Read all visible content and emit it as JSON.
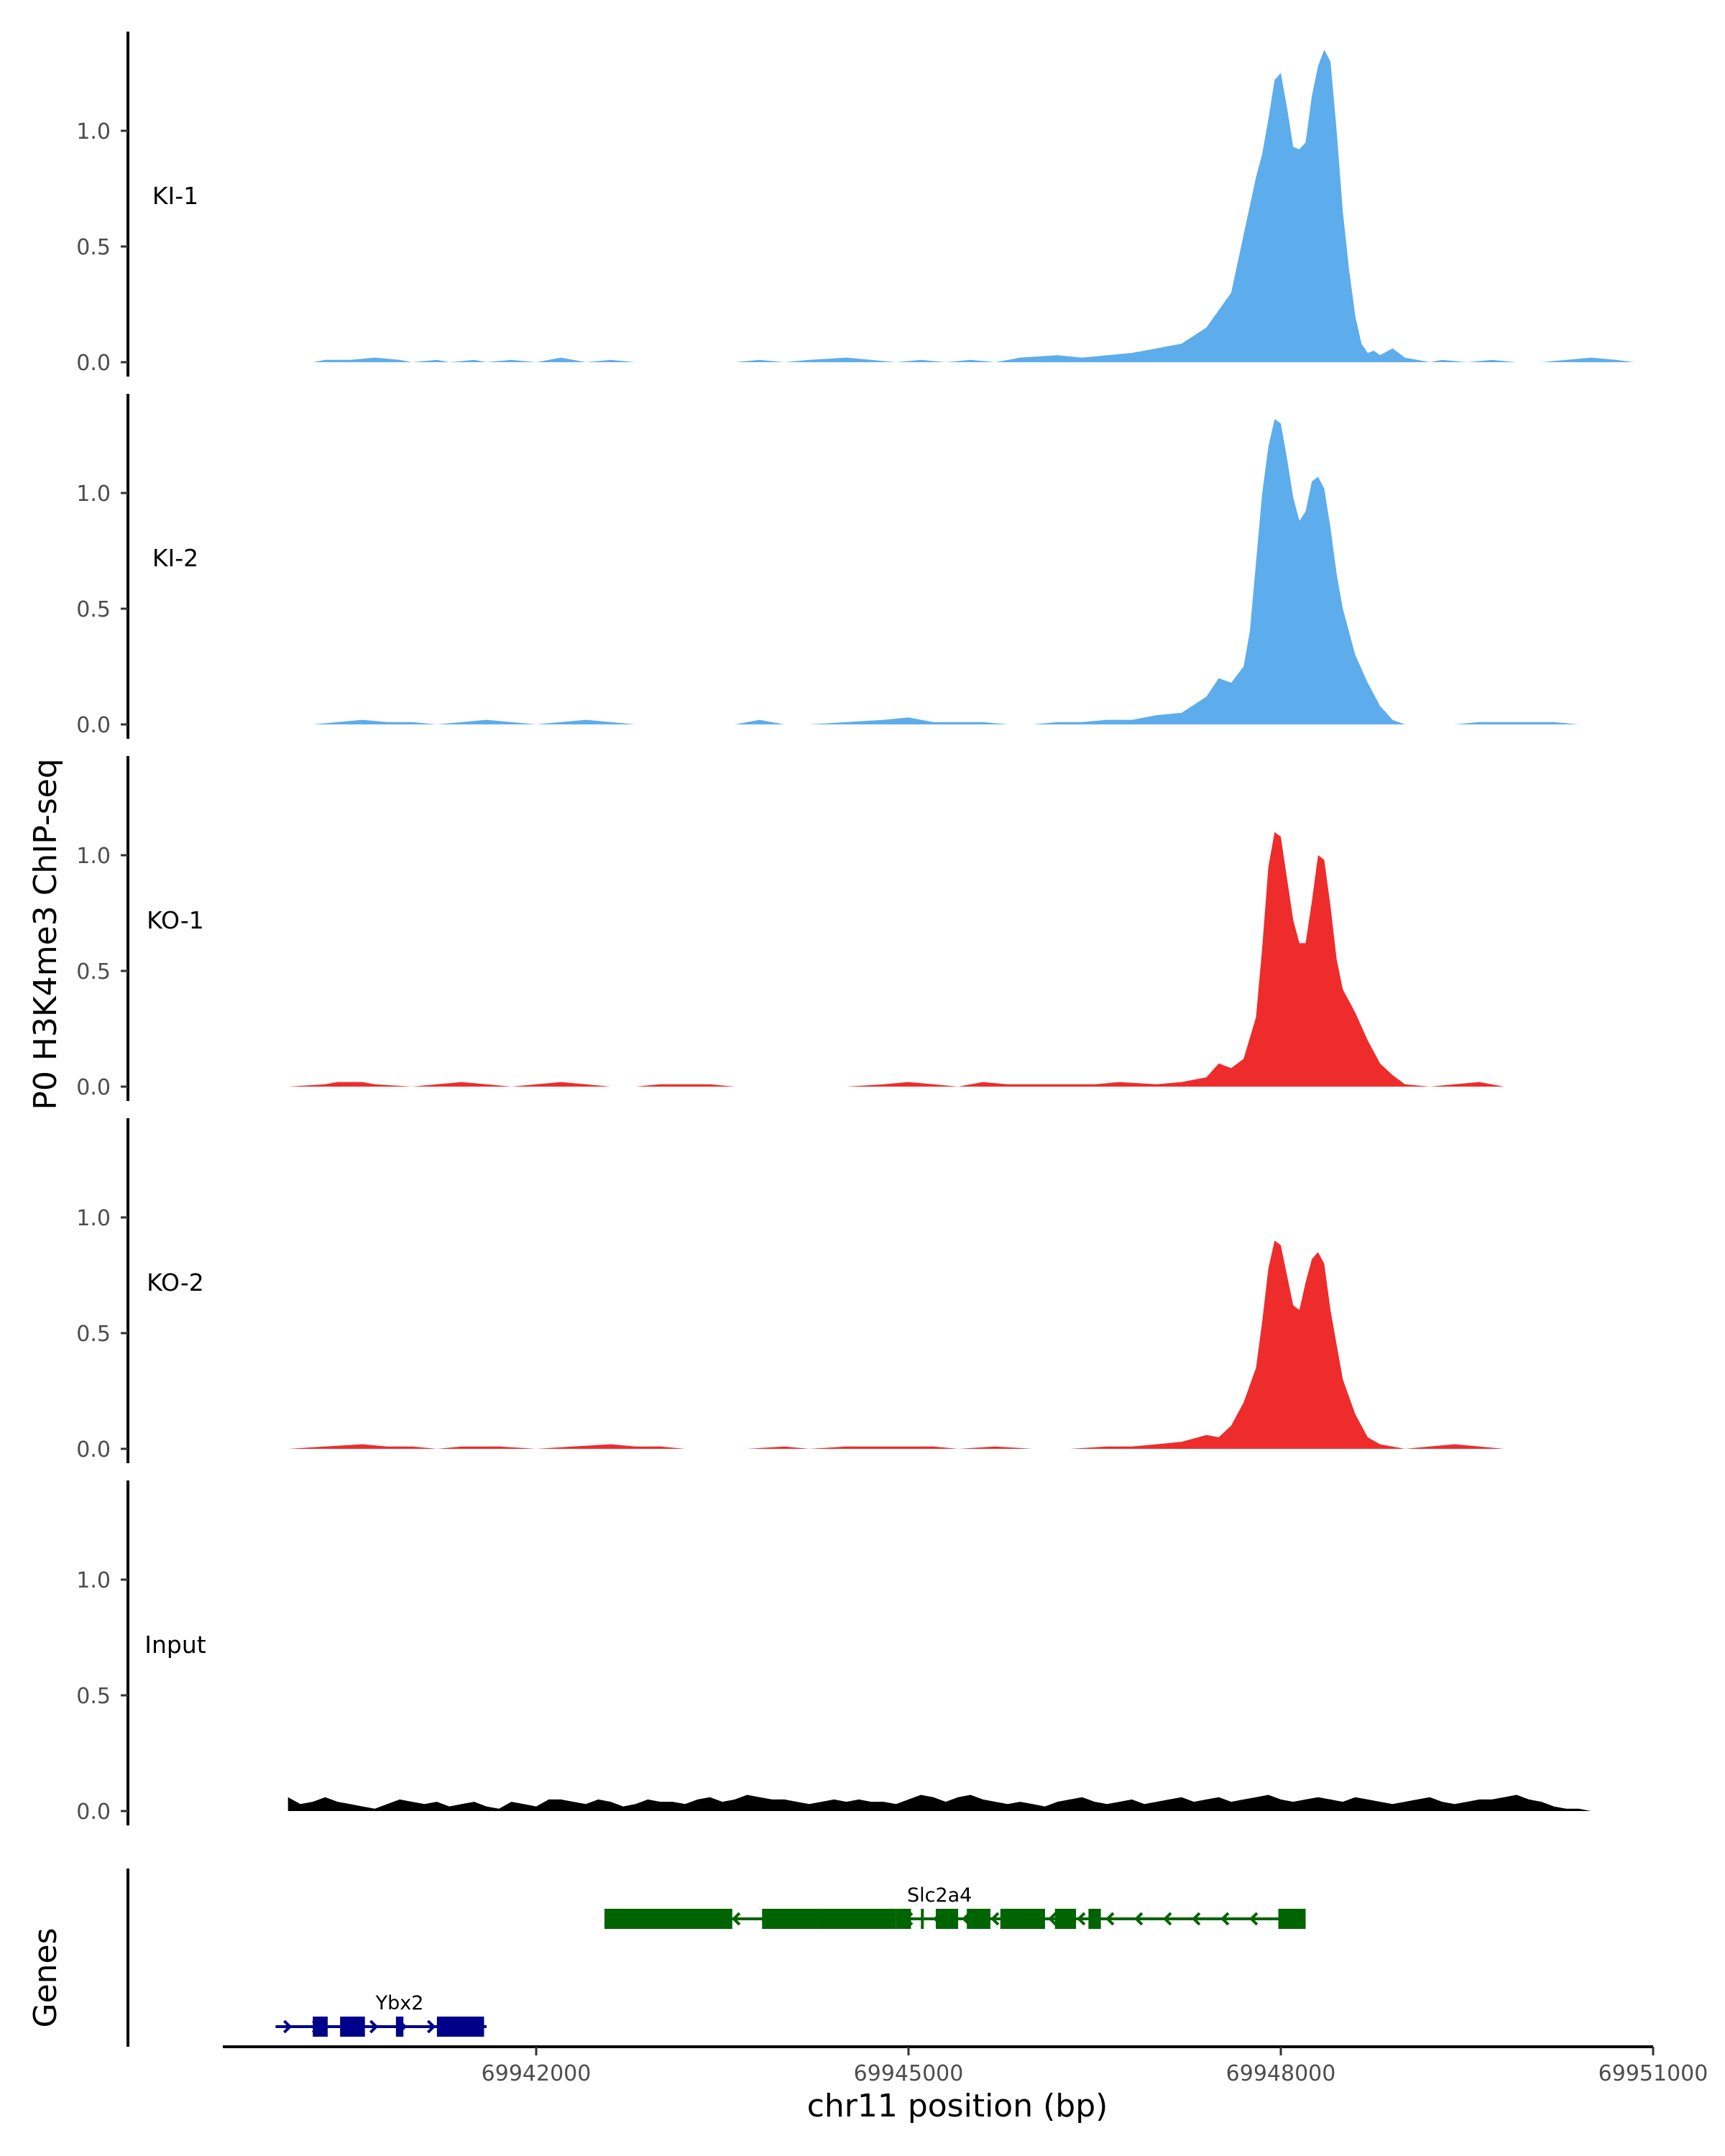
{
  "chart_data": {
    "type": "area",
    "ylabel": "P0 H3K4me3 ChIP-seq",
    "xlabel": "chr11 position (bp)",
    "xlim": [
      69939700,
      69951000
    ],
    "ylim": [
      0,
      1.4
    ],
    "y_ticks": [
      0.0,
      0.5,
      1.0
    ],
    "y_tick_labels": [
      "0.0",
      "0.5",
      "1.0"
    ],
    "x_ticks": [
      69942000,
      69945000,
      69948000,
      69951000
    ],
    "x_tick_labels": [
      "69942000",
      "69945000",
      "69948000",
      "69951000"
    ],
    "colors": {
      "KI": "#5DADEC",
      "KO": "#EE2C2C",
      "Input": "#000000",
      "gene_plus": "#00008B",
      "gene_minus": "#006400"
    },
    "tracks": [
      {
        "label": "KI-1",
        "color": "#5DADEC",
        "x": [
          69940200,
          69940300,
          69940500,
          69940700,
          69940900,
          69941000,
          69941200,
          69941300,
          69941500,
          69941600,
          69941800,
          69942000,
          69942200,
          69942300,
          69942400,
          69942600,
          69942800,
          69943000,
          69943200,
          69943400,
          69943600,
          69943800,
          69944000,
          69944200,
          69944500,
          69944700,
          69944900,
          69945100,
          69945300,
          69945500,
          69945700,
          69945900,
          69946200,
          69946400,
          69946600,
          69946800,
          69947000,
          69947200,
          69947400,
          69947600,
          69947700,
          69947800,
          69947850,
          69947900,
          69947950,
          69948000,
          69948050,
          69948100,
          69948150,
          69948200,
          69948250,
          69948300,
          69948350,
          69948400,
          69948450,
          69948500,
          69948550,
          69948600,
          69948650,
          69948700,
          69948750,
          69948800,
          69948900,
          69949000,
          69949100,
          69949200,
          69949300,
          69949500,
          69949700,
          69949900,
          69950100,
          69950300,
          69950500,
          69950700,
          69950850
        ],
        "values": [
          0,
          0.01,
          0.01,
          0.02,
          0.01,
          0,
          0.01,
          0,
          0.01,
          0,
          0.01,
          0,
          0.02,
          0.01,
          0,
          0.01,
          0,
          0,
          0,
          0,
          0,
          0.01,
          0,
          0.01,
          0.02,
          0.01,
          0,
          0.01,
          0,
          0.01,
          0,
          0.02,
          0.03,
          0.02,
          0.03,
          0.04,
          0.06,
          0.08,
          0.15,
          0.3,
          0.55,
          0.8,
          0.9,
          1.05,
          1.22,
          1.25,
          1.1,
          0.93,
          0.92,
          0.95,
          1.15,
          1.28,
          1.35,
          1.3,
          1.0,
          0.65,
          0.4,
          0.2,
          0.08,
          0.04,
          0.05,
          0.03,
          0.06,
          0.02,
          0.01,
          0,
          0.01,
          0,
          0.01,
          0,
          0,
          0.01,
          0.02,
          0.01,
          0
        ]
      },
      {
        "label": "KI-2",
        "color": "#5DADEC",
        "x": [
          69940000,
          69940200,
          69940400,
          69940600,
          69940800,
          69941000,
          69941200,
          69941400,
          69941600,
          69941800,
          69942000,
          69942200,
          69942400,
          69942600,
          69942800,
          69943000,
          69943200,
          69943400,
          69943600,
          69943800,
          69944000,
          69944200,
          69944500,
          69944800,
          69945000,
          69945200,
          69945400,
          69945600,
          69945800,
          69946000,
          69946200,
          69946400,
          69946600,
          69946800,
          69947000,
          69947200,
          69947400,
          69947500,
          69947600,
          69947700,
          69947750,
          69947800,
          69947850,
          69947900,
          69947950,
          69948000,
          69948050,
          69948100,
          69948150,
          69948200,
          69948250,
          69948300,
          69948350,
          69948400,
          69948450,
          69948500,
          69948600,
          69948700,
          69948800,
          69948900,
          69949000,
          69949200,
          69949400,
          69949600,
          69949800,
          69950000,
          69950200,
          69950400,
          69950600,
          69950700
        ],
        "values": [
          0,
          0,
          0.01,
          0.02,
          0.01,
          0.01,
          0,
          0.01,
          0.02,
          0.01,
          0,
          0.01,
          0.02,
          0.01,
          0,
          0,
          0,
          0,
          0,
          0.02,
          0,
          0,
          0.01,
          0.02,
          0.03,
          0.01,
          0.01,
          0.01,
          0,
          0,
          0.01,
          0.01,
          0.02,
          0.02,
          0.04,
          0.05,
          0.12,
          0.2,
          0.18,
          0.25,
          0.4,
          0.7,
          1.0,
          1.2,
          1.32,
          1.3,
          1.15,
          0.98,
          0.88,
          0.92,
          1.05,
          1.07,
          1.02,
          0.85,
          0.65,
          0.5,
          0.3,
          0.18,
          0.08,
          0.02,
          0,
          0,
          0,
          0.01,
          0.01,
          0.01,
          0.01,
          0,
          0,
          0
        ]
      },
      {
        "label": "KO-1",
        "color": "#EE2C2C",
        "x": [
          69940000,
          69940300,
          69940400,
          69940600,
          69940700,
          69941000,
          69941200,
          69941400,
          69941600,
          69941800,
          69942000,
          69942200,
          69942400,
          69942600,
          69942800,
          69943000,
          69943200,
          69943400,
          69943600,
          69943800,
          69944000,
          69944300,
          69944500,
          69944800,
          69945000,
          69945200,
          69945400,
          69945600,
          69945800,
          69946000,
          69946300,
          69946500,
          69946700,
          69947000,
          69947200,
          69947400,
          69947500,
          69947600,
          69947700,
          69947800,
          69947850,
          69947900,
          69947950,
          69948000,
          69948050,
          69948100,
          69948150,
          69948200,
          69948250,
          69948300,
          69948350,
          69948400,
          69948450,
          69948500,
          69948600,
          69948700,
          69948800,
          69948900,
          69949000,
          69949200,
          69949400,
          69949600,
          69949800
        ],
        "values": [
          0,
          0.01,
          0.02,
          0.02,
          0.01,
          0,
          0.01,
          0.02,
          0.01,
          0,
          0.01,
          0.02,
          0.01,
          0,
          0,
          0.01,
          0.01,
          0.01,
          0,
          0,
          0,
          0,
          0,
          0.01,
          0.02,
          0.01,
          0,
          0.02,
          0.01,
          0.01,
          0.01,
          0.01,
          0.02,
          0.01,
          0.02,
          0.04,
          0.1,
          0.08,
          0.12,
          0.3,
          0.6,
          0.95,
          1.1,
          1.08,
          0.9,
          0.72,
          0.62,
          0.62,
          0.8,
          1.0,
          0.98,
          0.78,
          0.55,
          0.42,
          0.32,
          0.2,
          0.1,
          0.05,
          0.01,
          0,
          0.01,
          0.02,
          0
        ]
      },
      {
        "label": "KO-2",
        "color": "#EE2C2C",
        "x": [
          69940000,
          69940300,
          69940600,
          69940800,
          69941000,
          69941200,
          69941400,
          69941700,
          69942000,
          69942300,
          69942600,
          69942800,
          69943000,
          69943200,
          69943400,
          69943700,
          69944000,
          69944200,
          69944500,
          69944800,
          69945000,
          69945200,
          69945400,
          69945700,
          69946000,
          69946300,
          69946600,
          69946800,
          69947000,
          69947200,
          69947400,
          69947500,
          69947600,
          69947700,
          69947800,
          69947850,
          69947900,
          69947950,
          69948000,
          69948050,
          69948100,
          69948150,
          69948200,
          69948250,
          69948300,
          69948350,
          69948400,
          69948450,
          69948500,
          69948600,
          69948700,
          69948800,
          69949000,
          69949200,
          69949400,
          69949600,
          69949800
        ],
        "values": [
          0,
          0.01,
          0.02,
          0.01,
          0.01,
          0,
          0.01,
          0.01,
          0,
          0.01,
          0.02,
          0.01,
          0.01,
          0,
          0,
          0,
          0.01,
          0,
          0.01,
          0.01,
          0.01,
          0.01,
          0,
          0.01,
          0,
          0,
          0.01,
          0.01,
          0.02,
          0.03,
          0.06,
          0.05,
          0.1,
          0.2,
          0.35,
          0.55,
          0.78,
          0.9,
          0.88,
          0.75,
          0.62,
          0.6,
          0.72,
          0.82,
          0.85,
          0.8,
          0.6,
          0.45,
          0.3,
          0.15,
          0.05,
          0.02,
          0,
          0.01,
          0.02,
          0.01,
          0
        ]
      },
      {
        "label": "Input",
        "color": "#000000",
        "x": [
          69940000,
          69940100,
          69940200,
          69940300,
          69940400,
          69940500,
          69940600,
          69940700,
          69940800,
          69940900,
          69941000,
          69941100,
          69941200,
          69941300,
          69941400,
          69941500,
          69941600,
          69941700,
          69941800,
          69941900,
          69942000,
          69942100,
          69942200,
          69942300,
          69942400,
          69942500,
          69942600,
          69942700,
          69942800,
          69942900,
          69943000,
          69943100,
          69943200,
          69943300,
          69943400,
          69943500,
          69943600,
          69943700,
          69943800,
          69943900,
          69944000,
          69944100,
          69944200,
          69944300,
          69944400,
          69944500,
          69944600,
          69944700,
          69944800,
          69944900,
          69945000,
          69945100,
          69945200,
          69945300,
          69945400,
          69945500,
          69945600,
          69945700,
          69945800,
          69945900,
          69946000,
          69946100,
          69946200,
          69946300,
          69946400,
          69946500,
          69946600,
          69946700,
          69946800,
          69946900,
          69947000,
          69947100,
          69947200,
          69947300,
          69947400,
          69947500,
          69947600,
          69947700,
          69947800,
          69947900,
          69948000,
          69948100,
          69948200,
          69948300,
          69948400,
          69948500,
          69948600,
          69948700,
          69948800,
          69948900,
          69949000,
          69949100,
          69949200,
          69949300,
          69949400,
          69949500,
          69949600,
          69949700,
          69949800,
          69949900,
          69950000,
          69950100,
          69950200,
          69950300,
          69950400,
          69950500
        ],
        "values": [
          0.06,
          0.03,
          0.04,
          0.06,
          0.04,
          0.03,
          0.02,
          0.01,
          0.03,
          0.05,
          0.04,
          0.03,
          0.04,
          0.02,
          0.03,
          0.04,
          0.02,
          0.01,
          0.04,
          0.03,
          0.02,
          0.05,
          0.05,
          0.04,
          0.03,
          0.05,
          0.04,
          0.02,
          0.03,
          0.05,
          0.04,
          0.04,
          0.03,
          0.05,
          0.06,
          0.04,
          0.05,
          0.07,
          0.06,
          0.05,
          0.05,
          0.04,
          0.03,
          0.04,
          0.05,
          0.04,
          0.05,
          0.04,
          0.04,
          0.03,
          0.05,
          0.07,
          0.06,
          0.04,
          0.06,
          0.07,
          0.05,
          0.04,
          0.03,
          0.04,
          0.03,
          0.02,
          0.04,
          0.05,
          0.06,
          0.04,
          0.03,
          0.04,
          0.05,
          0.03,
          0.04,
          0.05,
          0.06,
          0.04,
          0.05,
          0.06,
          0.04,
          0.05,
          0.06,
          0.07,
          0.05,
          0.04,
          0.05,
          0.06,
          0.05,
          0.04,
          0.06,
          0.05,
          0.04,
          0.03,
          0.04,
          0.05,
          0.06,
          0.04,
          0.03,
          0.04,
          0.05,
          0.05,
          0.06,
          0.07,
          0.05,
          0.04,
          0.02,
          0.01,
          0.01,
          0.0
        ],
        "x_end": 69950500
      }
    ],
    "genes": [
      {
        "name": "Ybx2",
        "strand": "+",
        "color": "#00008B",
        "row": 2,
        "start": 69939900,
        "end": 69941600,
        "exons": [
          [
            69940200,
            69940320
          ],
          [
            69940420,
            69940620
          ],
          [
            69940870,
            69940930
          ],
          [
            69941200,
            69941580
          ]
        ]
      },
      {
        "name": "Slc2a4",
        "strand": "-",
        "color": "#006400",
        "row": 1,
        "start": 69942550,
        "end": 69948200,
        "exons": [
          [
            69942550,
            69943580
          ],
          [
            69943820,
            69944270
          ],
          [
            69944270,
            69944900
          ],
          [
            69944900,
            69945020
          ],
          [
            69945100,
            69945120
          ],
          [
            69945220,
            69945400
          ],
          [
            69945470,
            69945660
          ],
          [
            69945740,
            69946100
          ],
          [
            69946180,
            69946350
          ],
          [
            69946450,
            69946550
          ],
          [
            69947980,
            69948200
          ]
        ]
      }
    ]
  }
}
